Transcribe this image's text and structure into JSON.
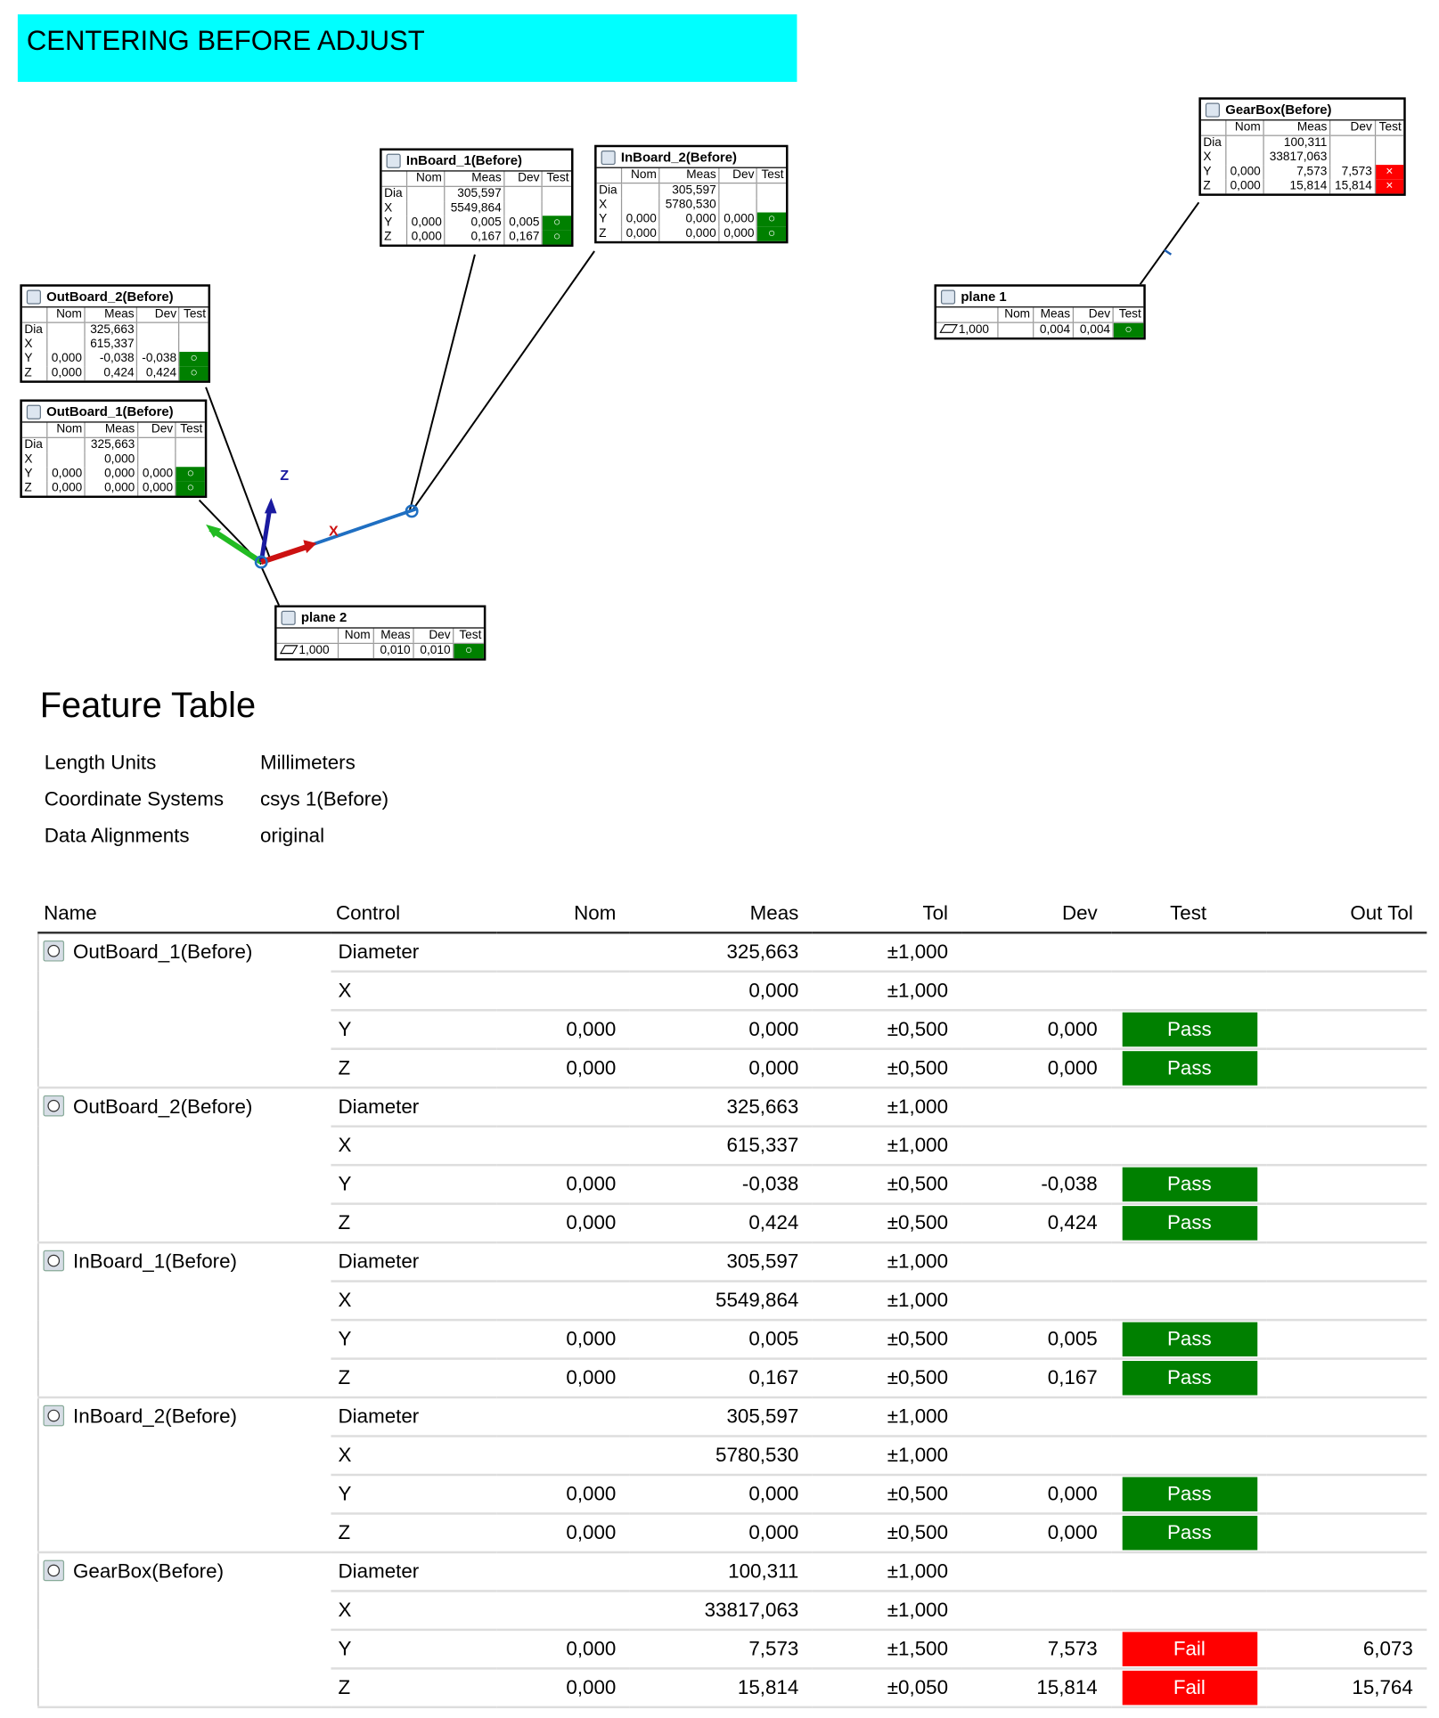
{
  "header": {
    "title": "CENTERING BEFORE ADJUST"
  },
  "diagram": {
    "axis_labels": [
      "Z",
      "X"
    ],
    "callouts": [
      {
        "title": "InBoard_1(Before)",
        "columns": [
          "Nom",
          "Meas",
          "Dev",
          "Test"
        ],
        "rows": [
          [
            "Dia",
            null,
            "305,597",
            null,
            null
          ],
          [
            "X",
            null,
            "5549,864",
            null,
            null
          ],
          [
            "Y",
            "0,000",
            "0,005",
            "0,005",
            "○"
          ],
          [
            "Z",
            "0,000",
            "0,167",
            "0,167",
            "○"
          ]
        ]
      },
      {
        "title": "InBoard_2(Before)",
        "columns": [
          "Nom",
          "Meas",
          "Dev",
          "Test"
        ],
        "rows": [
          [
            "Dia",
            null,
            "305,597",
            null,
            null
          ],
          [
            "X",
            null,
            "5780,530",
            null,
            null
          ],
          [
            "Y",
            "0,000",
            "0,000",
            "0,000",
            "○"
          ],
          [
            "Z",
            "0,000",
            "0,000",
            "0,000",
            "○"
          ]
        ]
      },
      {
        "title": "GearBox(Before)",
        "columns": [
          "Nom",
          "Meas",
          "Dev",
          "Test"
        ],
        "rows": [
          [
            "Dia",
            null,
            "100,311",
            null,
            null
          ],
          [
            "X",
            null,
            "33817,063",
            null,
            null
          ],
          [
            "Y",
            "0,000",
            "7,573",
            "7,573",
            "×"
          ],
          [
            "Z",
            "0,000",
            "15,814",
            "15,814",
            "×"
          ]
        ]
      },
      {
        "title": "plane 1",
        "columns": [
          "Nom",
          "Meas",
          "Dev",
          "Test"
        ],
        "rows": [
          [
            "1,000",
            null,
            "0,004",
            "0,004",
            "○"
          ]
        ]
      },
      {
        "title": "OutBoard_2(Before)",
        "columns": [
          "Nom",
          "Meas",
          "Dev",
          "Test"
        ],
        "rows": [
          [
            "Dia",
            null,
            "325,663",
            null,
            null
          ],
          [
            "X",
            null,
            "615,337",
            null,
            null
          ],
          [
            "Y",
            "0,000",
            "-0,038",
            "-0,038",
            "○"
          ],
          [
            "Z",
            "0,000",
            "0,424",
            "0,424",
            "○"
          ]
        ]
      },
      {
        "title": "OutBoard_1(Before)",
        "columns": [
          "Nom",
          "Meas",
          "Dev",
          "Test"
        ],
        "rows": [
          [
            "Dia",
            null,
            "325,663",
            null,
            null
          ],
          [
            "X",
            null,
            "0,000",
            null,
            null
          ],
          [
            "Y",
            "0,000",
            "0,000",
            "0,000",
            "○"
          ],
          [
            "Z",
            "0,000",
            "0,000",
            "0,000",
            "○"
          ]
        ]
      },
      {
        "title": "plane 2",
        "columns": [
          "Nom",
          "Meas",
          "Dev",
          "Test"
        ],
        "rows": [
          [
            "1,000",
            null,
            "0,010",
            "0,010",
            "○"
          ]
        ]
      }
    ]
  },
  "feature_table": {
    "title": "Feature Table",
    "info": [
      [
        "Length Units",
        "Millimeters"
      ],
      [
        "Coordinate Systems",
        "csys 1(Before)"
      ],
      [
        "Data Alignments",
        "original"
      ]
    ],
    "columns": [
      "Name",
      "Control",
      "Nom",
      "Meas",
      "Tol",
      "Dev",
      "Test",
      "Out Tol"
    ],
    "features": [
      {
        "name": "OutBoard_1(Before)",
        "rows": [
          [
            "Diameter",
            null,
            "325,663",
            "±1,000",
            null,
            null,
            null
          ],
          [
            "X",
            null,
            "0,000",
            "±1,000",
            null,
            null,
            null
          ],
          [
            "Y",
            "0,000",
            "0,000",
            "±0,500",
            "0,000",
            "Pass",
            null
          ],
          [
            "Z",
            "0,000",
            "0,000",
            "±0,500",
            "0,000",
            "Pass",
            null
          ]
        ]
      },
      {
        "name": "OutBoard_2(Before)",
        "rows": [
          [
            "Diameter",
            null,
            "325,663",
            "±1,000",
            null,
            null,
            null
          ],
          [
            "X",
            null,
            "615,337",
            "±1,000",
            null,
            null,
            null
          ],
          [
            "Y",
            "0,000",
            "-0,038",
            "±0,500",
            "-0,038",
            "Pass",
            null
          ],
          [
            "Z",
            "0,000",
            "0,424",
            "±0,500",
            "0,424",
            "Pass",
            null
          ]
        ]
      },
      {
        "name": "InBoard_1(Before)",
        "rows": [
          [
            "Diameter",
            null,
            "305,597",
            "±1,000",
            null,
            null,
            null
          ],
          [
            "X",
            null,
            "5549,864",
            "±1,000",
            null,
            null,
            null
          ],
          [
            "Y",
            "0,000",
            "0,005",
            "±0,500",
            "0,005",
            "Pass",
            null
          ],
          [
            "Z",
            "0,000",
            "0,167",
            "±0,500",
            "0,167",
            "Pass",
            null
          ]
        ]
      },
      {
        "name": "InBoard_2(Before)",
        "rows": [
          [
            "Diameter",
            null,
            "305,597",
            "±1,000",
            null,
            null,
            null
          ],
          [
            "X",
            null,
            "5780,530",
            "±1,000",
            null,
            null,
            null
          ],
          [
            "Y",
            "0,000",
            "0,000",
            "±0,500",
            "0,000",
            "Pass",
            null
          ],
          [
            "Z",
            "0,000",
            "0,000",
            "±0,500",
            "0,000",
            "Pass",
            null
          ]
        ]
      },
      {
        "name": "GearBox(Before)",
        "rows": [
          [
            "Diameter",
            null,
            "100,311",
            "±1,000",
            null,
            null,
            null
          ],
          [
            "X",
            null,
            "33817,063",
            "±1,000",
            null,
            null,
            null
          ],
          [
            "Y",
            "0,000",
            "7,573",
            "±1,500",
            "7,573",
            "Fail",
            "6,073"
          ],
          [
            "Z",
            "0,000",
            "15,814",
            "±0,050",
            "15,814",
            "Fail",
            "15,764"
          ]
        ]
      }
    ]
  }
}
